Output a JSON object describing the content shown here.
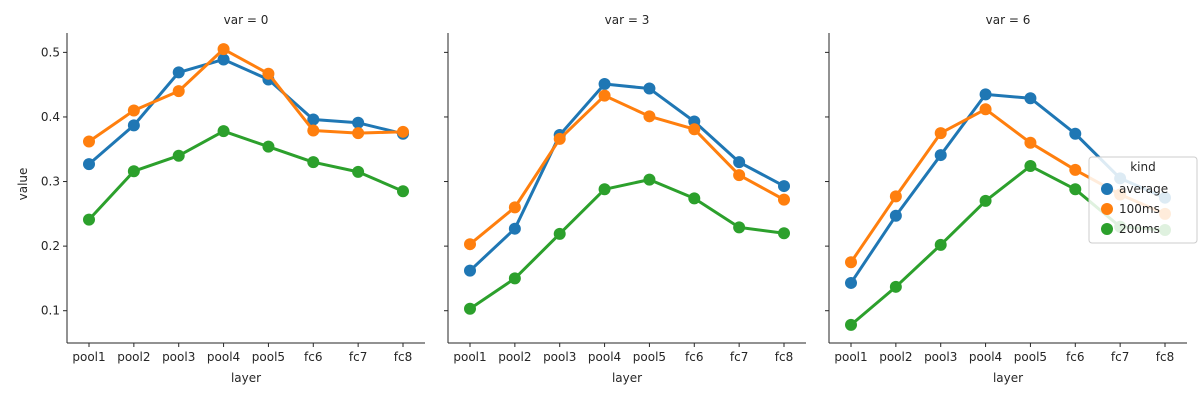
{
  "chart_data": {
    "type": "line",
    "markers": true,
    "categories": [
      "pool1",
      "pool2",
      "pool3",
      "pool4",
      "pool5",
      "fc6",
      "fc7",
      "fc8"
    ],
    "xlabel": "layer",
    "ylabel": "value",
    "ylim": [
      0.05,
      0.53
    ],
    "yticks": [
      0.1,
      0.2,
      0.3,
      0.4,
      0.5
    ],
    "sharey": true,
    "grid": false,
    "legend": {
      "title": "kind",
      "placement": "right",
      "entries": [
        "average",
        "100ms",
        "200ms"
      ]
    },
    "colors": {
      "average": "#1f77b4",
      "100ms": "#ff7f0e",
      "200ms": "#2ca02c"
    },
    "panels": [
      {
        "title": "var = 0",
        "series": [
          {
            "name": "average",
            "values": [
              0.327,
              0.387,
              0.469,
              0.489,
              0.458,
              0.396,
              0.391,
              0.374
            ]
          },
          {
            "name": "100ms",
            "values": [
              0.362,
              0.41,
              0.44,
              0.505,
              0.467,
              0.379,
              0.375,
              0.377
            ]
          },
          {
            "name": "200ms",
            "values": [
              0.241,
              0.316,
              0.34,
              0.378,
              0.354,
              0.33,
              0.315,
              0.285
            ]
          }
        ]
      },
      {
        "title": "var = 3",
        "series": [
          {
            "name": "average",
            "values": [
              0.162,
              0.227,
              0.372,
              0.451,
              0.444,
              0.393,
              0.33,
              0.293
            ]
          },
          {
            "name": "100ms",
            "values": [
              0.203,
              0.26,
              0.366,
              0.433,
              0.401,
              0.381,
              0.31,
              0.272
            ]
          },
          {
            "name": "200ms",
            "values": [
              0.103,
              0.15,
              0.219,
              0.288,
              0.303,
              0.274,
              0.229,
              0.22
            ]
          }
        ]
      },
      {
        "title": "var = 6",
        "series": [
          {
            "name": "average",
            "values": [
              0.143,
              0.247,
              0.341,
              0.435,
              0.429,
              0.374,
              0.305,
              0.275
            ]
          },
          {
            "name": "100ms",
            "values": [
              0.175,
              0.277,
              0.375,
              0.412,
              0.36,
              0.318,
              0.28,
              0.25
            ]
          },
          {
            "name": "200ms",
            "values": [
              0.078,
              0.137,
              0.202,
              0.27,
              0.324,
              0.288,
              0.23,
              0.225
            ]
          }
        ]
      }
    ]
  }
}
